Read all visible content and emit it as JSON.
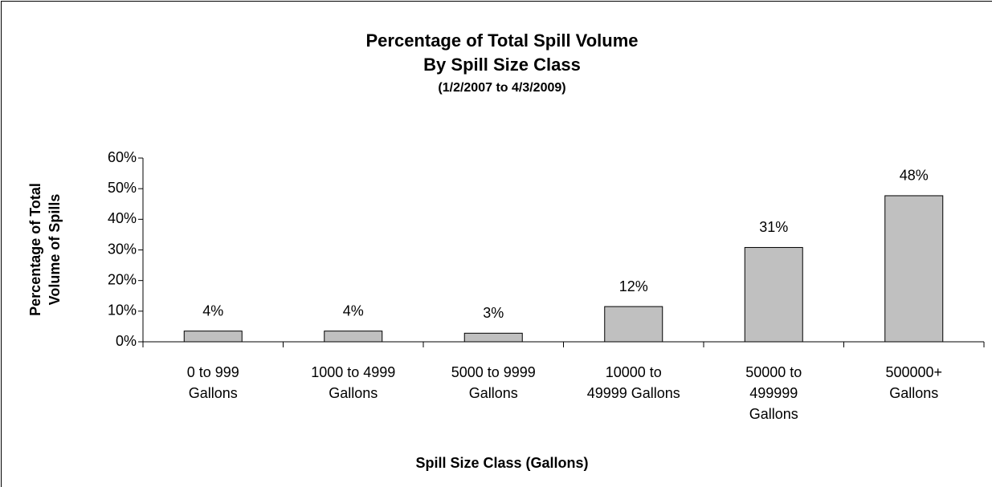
{
  "chart_data": {
    "type": "bar",
    "title": "Percentage of Total Spill Volume",
    "subtitle": "By Spill Size Class",
    "date_range": "(1/2/2007 to 4/3/2009)",
    "y_label": [
      "Percentage of Total",
      "Volume of Spills"
    ],
    "x_label": "Spill Size Class (Gallons)",
    "categories": [
      [
        "0 to 999",
        "Gallons"
      ],
      [
        "1000 to 4999",
        "Gallons"
      ],
      [
        "5000 to 9999",
        "Gallons"
      ],
      [
        "10000 to",
        "49999 Gallons"
      ],
      [
        "50000 to",
        "499999",
        "Gallons"
      ],
      [
        "500000+",
        "Gallons"
      ]
    ],
    "values": [
      3.5,
      3.5,
      2.8,
      11.5,
      30.8,
      47.7
    ],
    "value_labels": [
      "4%",
      "4%",
      "3%",
      "12%",
      "31%",
      "48%"
    ],
    "color": "#c0c0c0",
    "ylim": [
      0,
      60
    ],
    "yticks": [
      {
        "value": 0,
        "label": "0%"
      },
      {
        "value": 10,
        "label": "10%"
      },
      {
        "value": 20,
        "label": "20%"
      },
      {
        "value": 30,
        "label": "30%"
      },
      {
        "value": 40,
        "label": "40%"
      },
      {
        "value": 50,
        "label": "50%"
      },
      {
        "value": 60,
        "label": "60%"
      }
    ],
    "grid": false
  }
}
